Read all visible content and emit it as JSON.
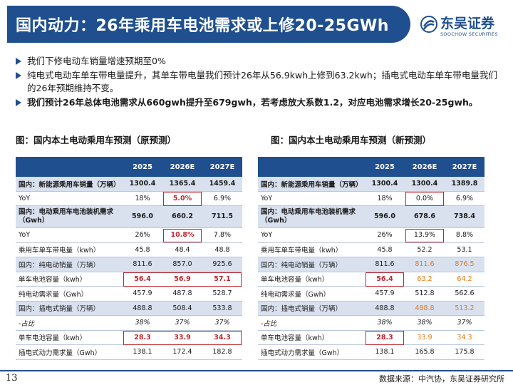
{
  "title": "国内动力：26年乘用车电池需求或上修20-25GWh",
  "logo": {
    "cn": "东吴证券",
    "en": "SOOCHOW SECURITIES"
  },
  "bullets": [
    "我们下修电动车销量增速预期至0%",
    "纯电式电动车单车带电量提升，其单车带电量我们预计26年从56.9kwh上修到63.2kwh；插电式电动车单车带电量我们的26年预期维持不变。",
    "我们预计26年总体电池需求从660gwh提升至679gwh，若考虑放大系数1.2，对应电池需求增长20-25gwh。"
  ],
  "left_table": {
    "title": "图：国内本土电动乘用车预测（原预测）",
    "headers": [
      "",
      "2025",
      "2026E",
      "2027E"
    ],
    "rows": [
      [
        "国内：新能源乘用车销量（万辆）",
        "1300.4",
        "1365.4",
        "1459.4"
      ],
      [
        "YoY",
        "18%",
        "5.0%",
        "6.9%"
      ],
      [
        "国内：电动乘用车电池装机需求（Gwh）",
        "596.0",
        "660.2",
        "711.5"
      ],
      [
        "YoY",
        "26%",
        "10.8%",
        "7.8%"
      ],
      [
        "乘用车单车带电量（kwh）",
        "45.8",
        "48.4",
        "48.8"
      ],
      [
        "国内：纯电动销量（万辆）",
        "811.6",
        "857.0",
        "925.6"
      ],
      [
        "单车电池容量（kwh）",
        "56.4",
        "56.9",
        "57.1"
      ],
      [
        "纯电动需求量（Gwh）",
        "457.9",
        "487.8",
        "528.7"
      ],
      [
        "国内：插电式销量（万辆）",
        "488.8",
        "508.4",
        "533.8"
      ],
      [
        "-占比",
        "38%",
        "37%",
        "37%"
      ],
      [
        "单车电池容量（kwh）",
        "28.3",
        "33.9",
        "34.3"
      ],
      [
        "插电式动力需求量（Gwh）",
        "138.1",
        "172.4",
        "182.8"
      ]
    ]
  },
  "right_table": {
    "title": "图：国内本土电动乘用车预测（新预测）",
    "headers": [
      "",
      "2025",
      "2026E",
      "2027E"
    ],
    "rows": [
      [
        "国内：新能源乘用车销量（万辆）",
        "1300.4",
        "1300.4",
        "1389.8"
      ],
      [
        "YoY",
        "18%",
        "0.0%",
        "6.9%"
      ],
      [
        "国内：电动乘用车电池装机需求（Gwh）",
        "596.0",
        "678.6",
        "738.4"
      ],
      [
        "YoY",
        "26%",
        "13.9%",
        "8.8%"
      ],
      [
        "乘用车单车带电量（kwh）",
        "45.8",
        "52.2",
        "53.1"
      ],
      [
        "国内：纯电动销量（万辆）",
        "811.6",
        "811.6",
        "876.5"
      ],
      [
        "单车电池容量（kwh）",
        "56.4",
        "63.2",
        "64.2"
      ],
      [
        "纯电动需求量（Gwh）",
        "457.9",
        "512.8",
        "562.6"
      ],
      [
        "国内：插电式销量（万辆）",
        "488.8",
        "488.8",
        "513.2"
      ],
      [
        "-占比",
        "38%",
        "38%",
        "37%"
      ],
      [
        "单车电池容量（kwh）",
        "28.3",
        "33.9",
        "34.3"
      ],
      [
        "插电式动力需求量（Gwh）",
        "138.1",
        "165.8",
        "175.8"
      ]
    ]
  },
  "footer": {
    "page": "13",
    "source": "数据来源：中汽协，东吴证券研究所"
  },
  "colors": {
    "brand": "#1f4f8f",
    "highlight": "#c0262e",
    "revised": "#e07a1f",
    "shade": "#d9e1ef"
  }
}
